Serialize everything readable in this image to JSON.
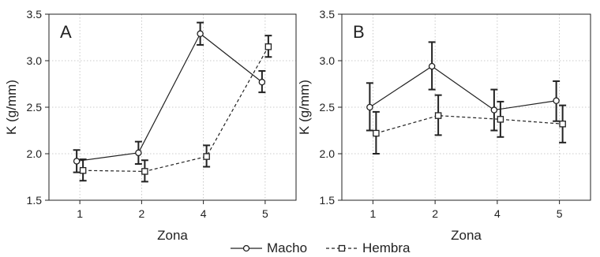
{
  "chart_data": [
    {
      "type": "line",
      "panel_label": "A",
      "xlabel": "Zona",
      "ylabel": "K (g/mm)",
      "categories": [
        "1",
        "2",
        "4",
        "5"
      ],
      "ylim": [
        1.5,
        3.5
      ],
      "yticks": [
        "1.5",
        "2.0",
        "2.5",
        "3.0",
        "3.5"
      ],
      "grid": true,
      "series": [
        {
          "name": "Macho",
          "marker": "circle",
          "line": "solid",
          "values": [
            1.92,
            2.01,
            3.29,
            2.77
          ],
          "err_low": [
            1.8,
            1.89,
            3.17,
            2.66
          ],
          "err_high": [
            2.04,
            2.13,
            3.41,
            2.89
          ]
        },
        {
          "name": "Hembra",
          "marker": "square",
          "line": "dashed",
          "values": [
            1.82,
            1.81,
            1.97,
            3.15
          ],
          "err_low": [
            1.71,
            1.7,
            1.86,
            3.04
          ],
          "err_high": [
            1.94,
            1.93,
            2.09,
            3.27
          ]
        }
      ]
    },
    {
      "type": "line",
      "panel_label": "B",
      "xlabel": "Zona",
      "ylabel": "K (g/mm)",
      "categories": [
        "1",
        "2",
        "4",
        "5"
      ],
      "ylim": [
        1.5,
        3.5
      ],
      "yticks": [
        "1.5",
        "2.0",
        "2.5",
        "3.0",
        "3.5"
      ],
      "grid": true,
      "series": [
        {
          "name": "Macho",
          "marker": "circle",
          "line": "solid",
          "values": [
            2.5,
            2.94,
            2.47,
            2.57
          ],
          "err_low": [
            2.25,
            2.69,
            2.25,
            2.35
          ],
          "err_high": [
            2.76,
            3.2,
            2.69,
            2.78
          ]
        },
        {
          "name": "Hembra",
          "marker": "square",
          "line": "dashed",
          "values": [
            2.22,
            2.41,
            2.37,
            2.32
          ],
          "err_low": [
            2.0,
            2.2,
            2.18,
            2.12
          ],
          "err_high": [
            2.45,
            2.63,
            2.56,
            2.52
          ]
        }
      ]
    }
  ],
  "legend": {
    "items": [
      {
        "label": "Macho",
        "marker": "circle",
        "line": "solid"
      },
      {
        "label": "Hembra",
        "marker": "square",
        "line": "dashed"
      }
    ]
  },
  "colors": {
    "ink": "#222222",
    "grid": "#bbbbbb",
    "background": "#ffffff"
  }
}
